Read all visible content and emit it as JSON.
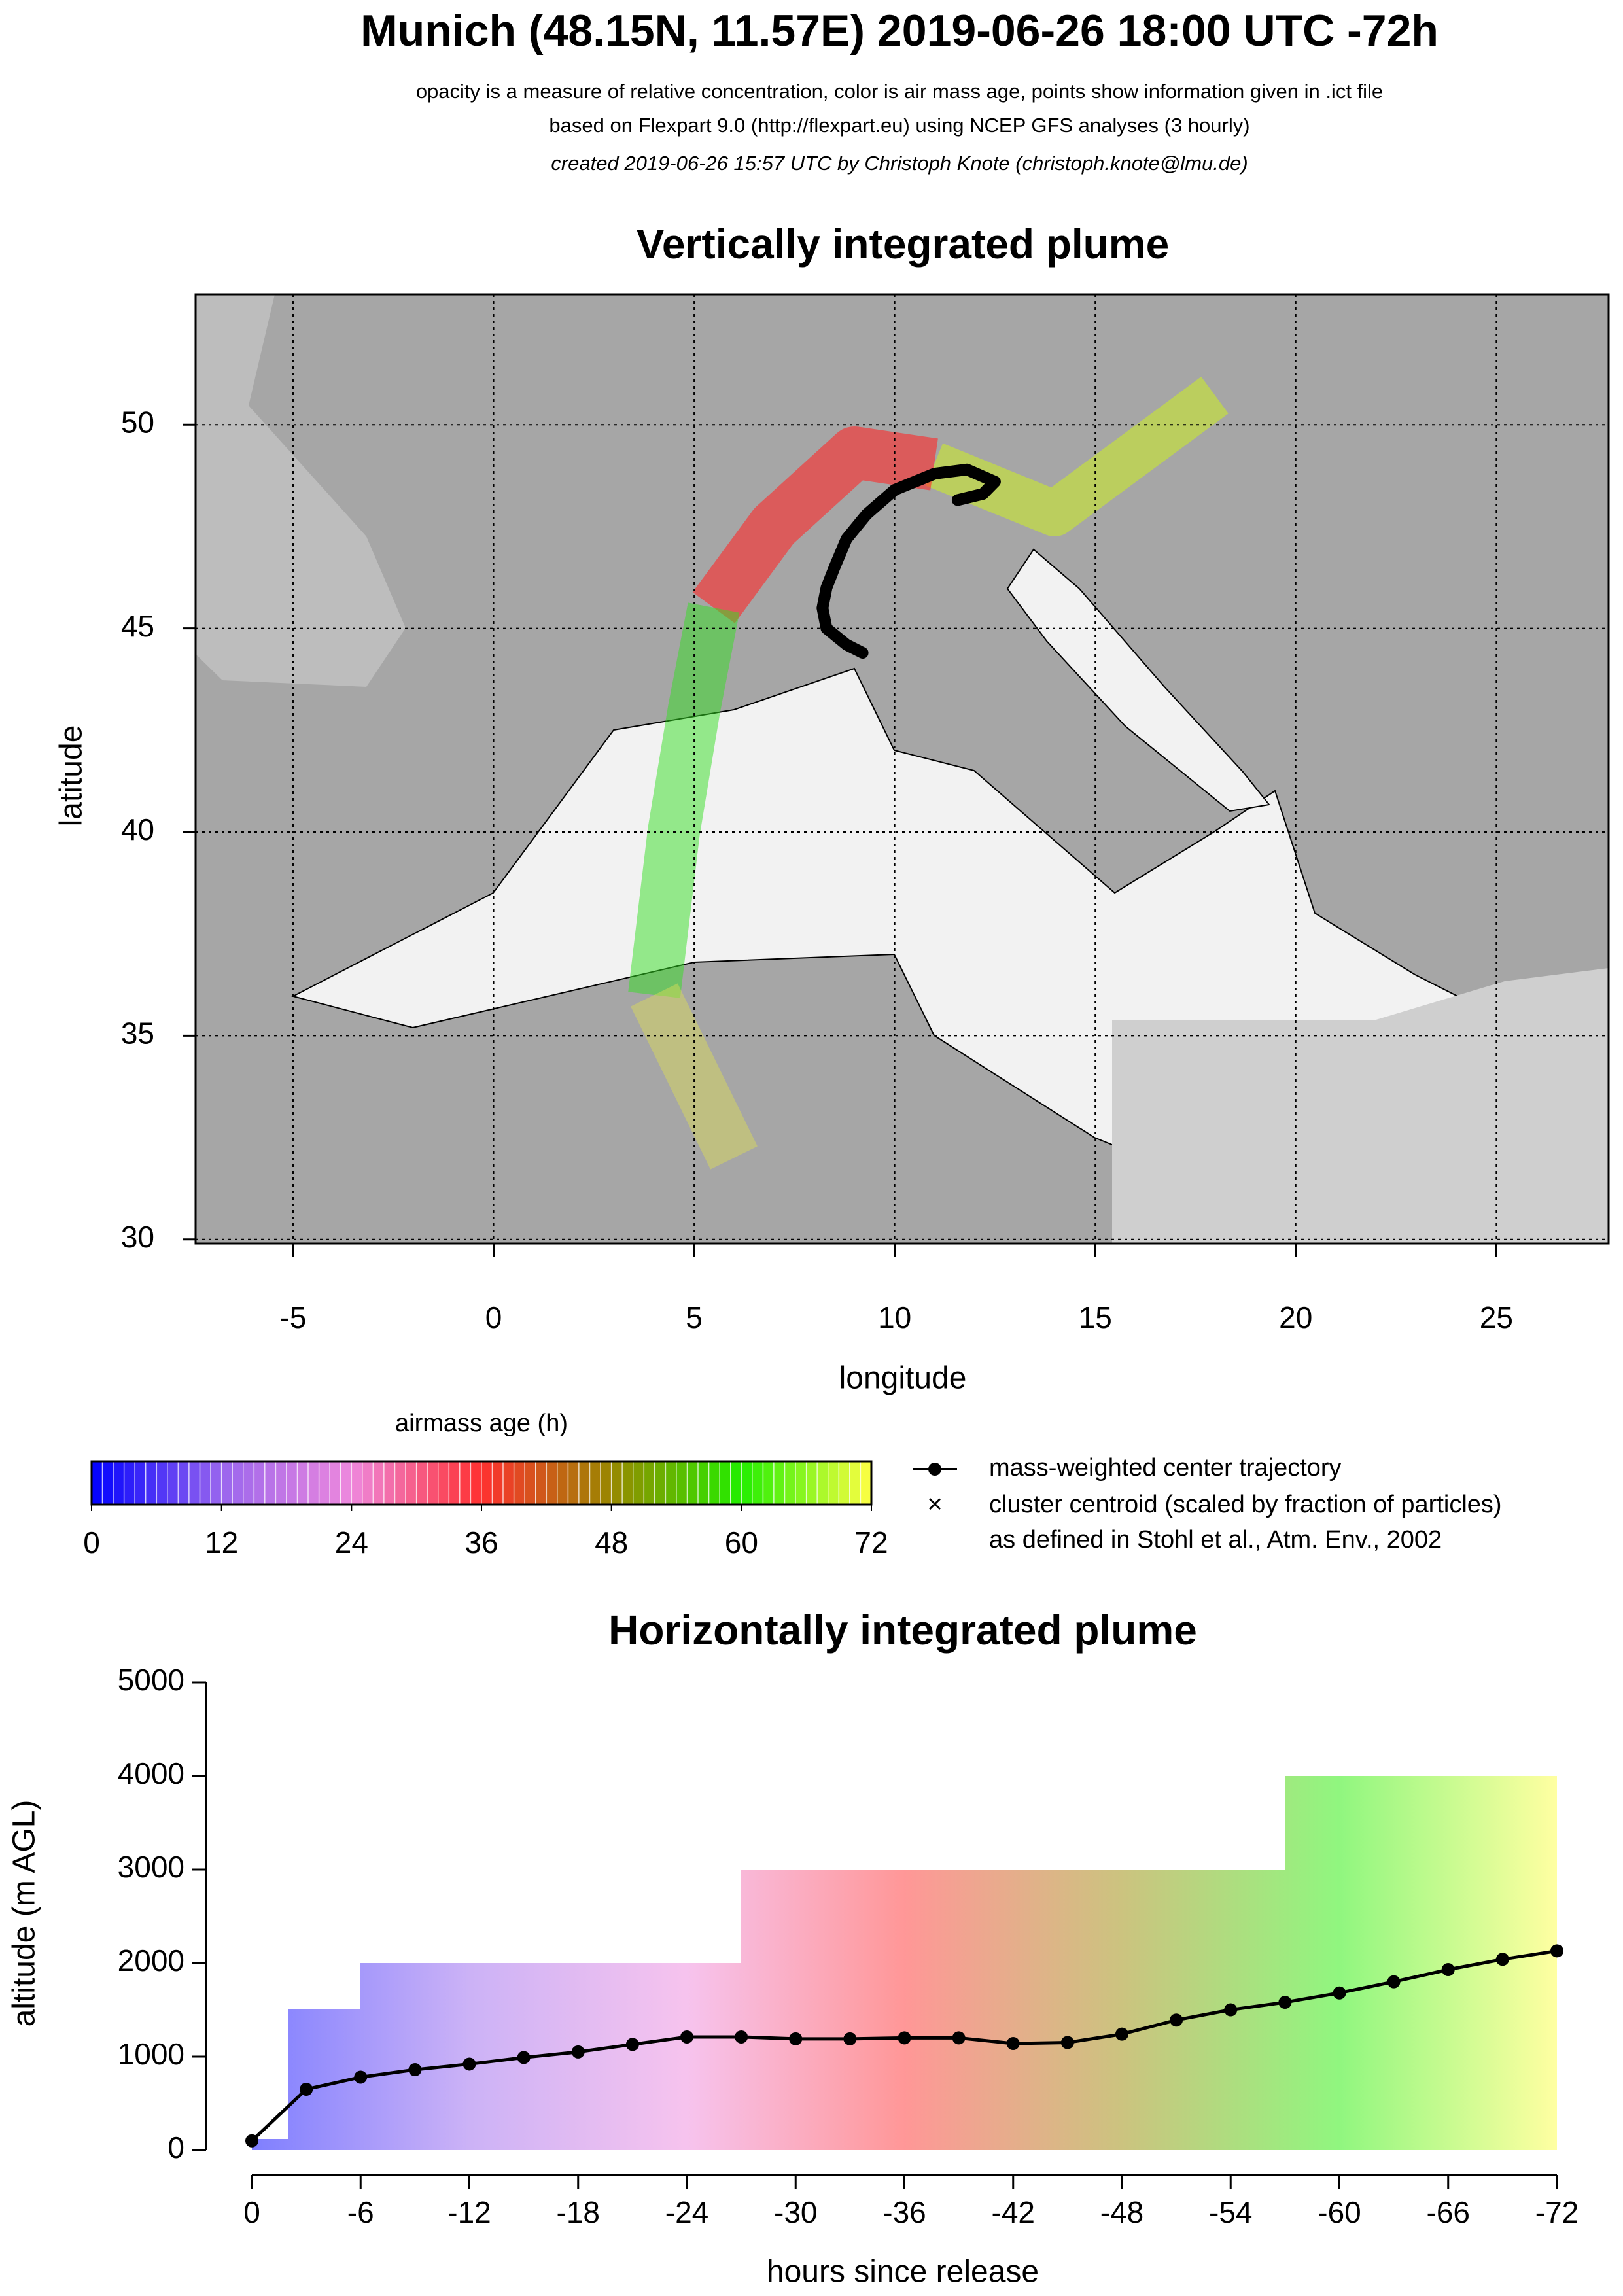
{
  "header": {
    "title": "Munich (48.15N, 11.57E) 2019-06-26 18:00 UTC -72h",
    "subtitle": [
      "opacity is a measure of relative concentration, color is air mass age, points show information given in .ict file",
      "based on Flexpart 9.0 (http://flexpart.eu) using NCEP GFS analyses (3 hourly)",
      "created 2019-06-26 15:57 UTC by Christoph Knote (christoph.knote@lmu.de)"
    ]
  },
  "chart_data": [
    {
      "type": "map",
      "title": "Vertically integrated plume",
      "x_label": "longitude",
      "y_label": "latitude",
      "xlim": [
        -7.43,
        27.8
      ],
      "ylim": [
        29.9,
        53.2
      ],
      "xticks": [
        -5,
        0,
        5,
        10,
        15,
        20,
        25
      ],
      "yticks": [
        30,
        35,
        40,
        45,
        50
      ],
      "grid": true,
      "color": "#000000",
      "x": [
        11.57,
        12.2,
        12.5,
        11.8,
        11,
        10,
        9.3,
        8.8,
        8.5,
        8.3,
        8.2,
        8.3,
        8.8,
        9.2
      ],
      "values": [
        48.15,
        48.3,
        48.6,
        48.9,
        48.8,
        48.4,
        47.8,
        47.2,
        46.5,
        46,
        45.5,
        45.0,
        44.6,
        44.4
      ]
    },
    {
      "type": "colorbar",
      "title": "airmass age (h)",
      "lim": [
        0,
        72
      ],
      "ticks": [
        0,
        12,
        24,
        36,
        48,
        60,
        72
      ],
      "colors": [
        "#0000ff",
        "#9966ee",
        "#ee88dd",
        "#ff3030",
        "#998800",
        "#22ee00",
        "#ffff44"
      ],
      "legend": [
        "mass-weighted center trajectory",
        "cluster centroid (scaled by fraction of particles)",
        "as defined in Stohl et al., Atm. Env., 2002"
      ]
    },
    {
      "type": "line",
      "title": "Horizontally integrated plume",
      "x_label": "hours since release",
      "y_label": "altitude (m AGL)",
      "xlim": [
        0,
        -72
      ],
      "ylim": [
        0,
        5000
      ],
      "xticks": [
        0,
        -6,
        -12,
        -18,
        -24,
        -30,
        -36,
        -42,
        -48,
        -54,
        -60,
        -66,
        -72
      ],
      "yticks": [
        0,
        1000,
        2000,
        3000,
        4000,
        5000
      ],
      "color": "#000000",
      "x": [
        0,
        -3,
        -6,
        -9,
        -12,
        -15,
        -18,
        -21,
        -24,
        -27,
        -30,
        -33,
        -36,
        -39,
        -42,
        -45,
        -48,
        -51,
        -54,
        -57,
        -60,
        -63,
        -66,
        -69,
        -72
      ],
      "values": [
        100,
        650,
        780,
        860,
        920,
        990,
        1050,
        1130,
        1210,
        1210,
        1190,
        1190,
        1200,
        1200,
        1140,
        1150,
        1240,
        1390,
        1500,
        1580,
        1680,
        1800,
        1930,
        2040,
        2130
      ]
    }
  ]
}
